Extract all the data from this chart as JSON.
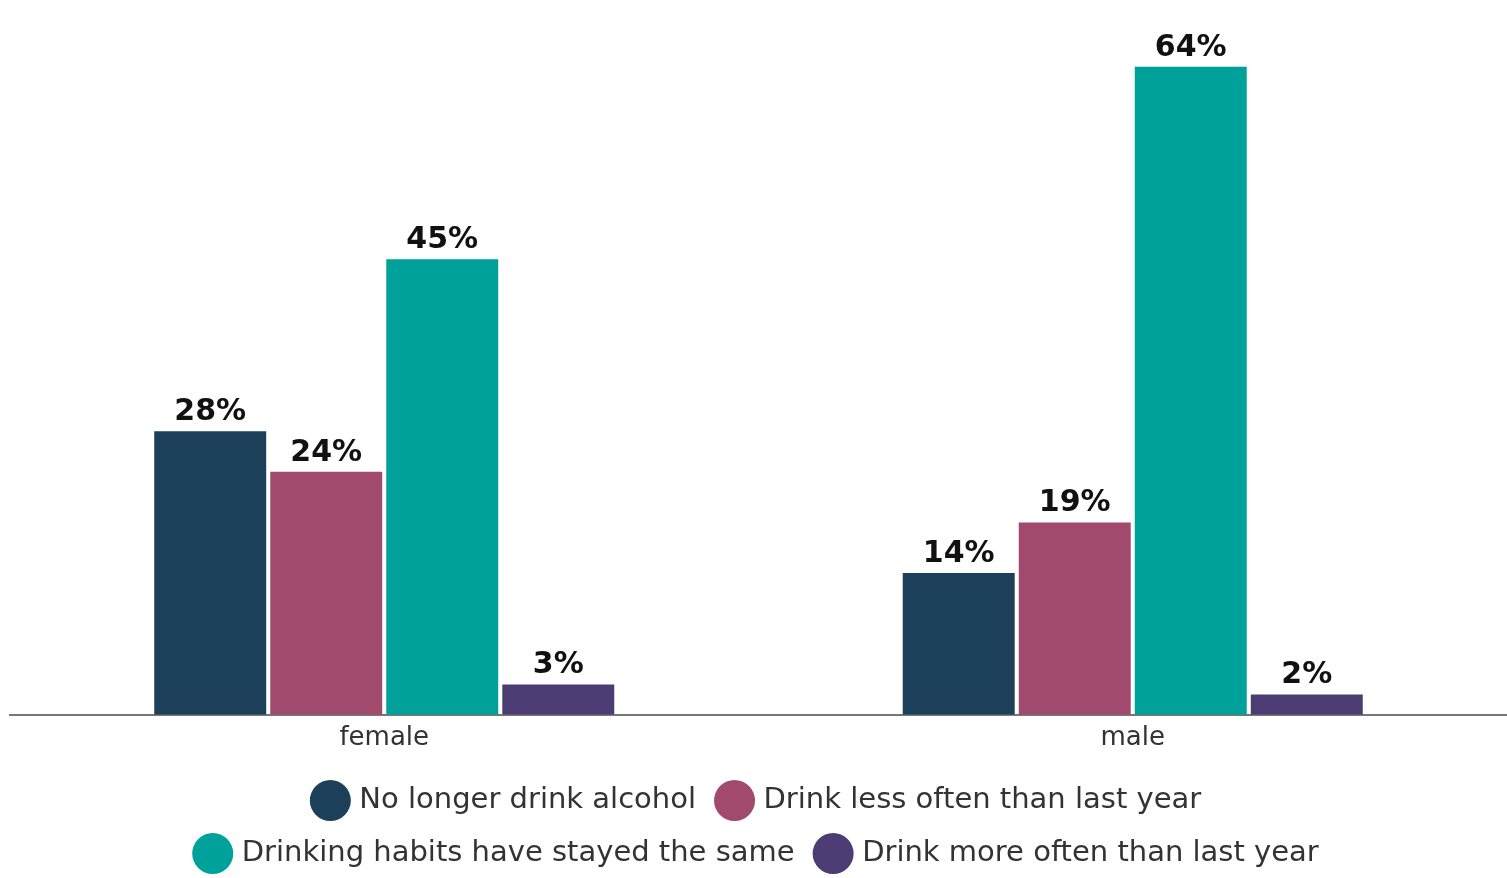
{
  "chart_data": {
    "type": "bar",
    "categories": [
      "female",
      "male"
    ],
    "series": [
      {
        "name": "No longer drink alcohol",
        "color": "#1c405a",
        "values": [
          28,
          14
        ],
        "value_labels": [
          "28%",
          "14%"
        ]
      },
      {
        "name": "Drink less often than last year",
        "color": "#a14a6e",
        "values": [
          24,
          19
        ],
        "value_labels": [
          "24%",
          "19%"
        ]
      },
      {
        "name": "Drinking habits have stayed the same",
        "color": "#00a19a",
        "values": [
          45,
          64
        ],
        "value_labels": [
          "45%",
          "64%"
        ]
      },
      {
        "name": "Drink more often than last year",
        "color": "#4b3d74",
        "values": [
          3,
          2
        ],
        "value_labels": [
          "3%",
          "2%"
        ]
      }
    ],
    "legend": "bottom",
    "grid": false
  }
}
